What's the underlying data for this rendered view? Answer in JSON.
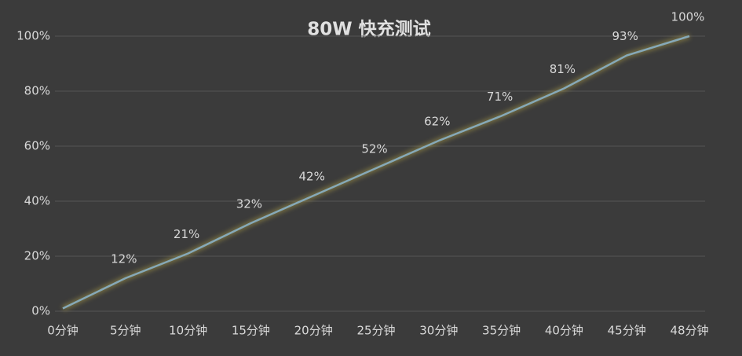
{
  "chart_data": {
    "type": "line",
    "title": "80W 快充测试",
    "categories": [
      "0分钟",
      "5分钟",
      "10分钟",
      "15分钟",
      "20分钟",
      "25分钟",
      "30分钟",
      "35分钟",
      "40分钟",
      "45分钟",
      "48分钟"
    ],
    "values": [
      1,
      12,
      21,
      32,
      42,
      52,
      62,
      71,
      81,
      93,
      100
    ],
    "value_labels": [
      null,
      "12%",
      "21%",
      "32%",
      "42%",
      "52%",
      "62%",
      "71%",
      "81%",
      "93%",
      "100%"
    ],
    "color": "#86a9b8",
    "ylim": [
      0,
      100
    ],
    "yticks": [
      {
        "value": 0,
        "label": "0%"
      },
      {
        "value": 20,
        "label": "20%"
      },
      {
        "value": 40,
        "label": "40%"
      },
      {
        "value": 60,
        "label": "60%"
      },
      {
        "value": 80,
        "label": "80%"
      },
      {
        "value": 100,
        "label": "100%"
      }
    ],
    "grid": true
  }
}
